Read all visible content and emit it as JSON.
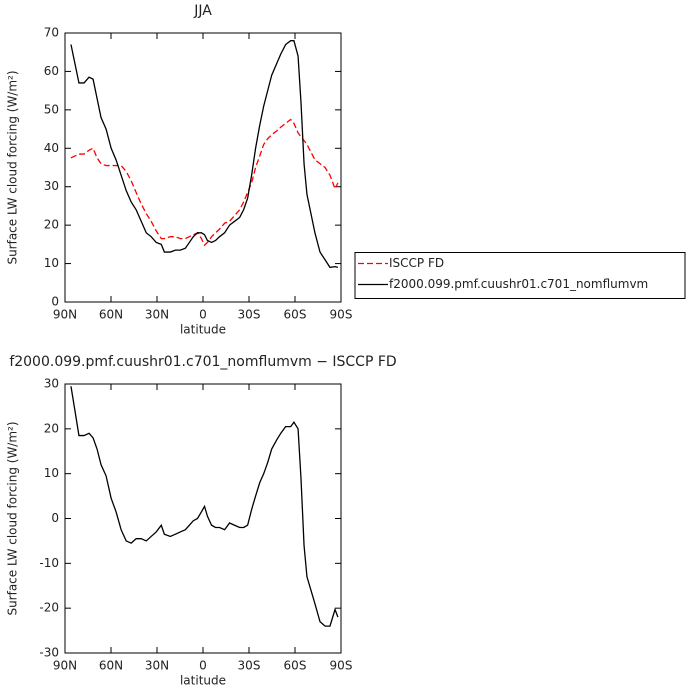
{
  "chart_data": [
    {
      "type": "line",
      "title": "JJA",
      "xlabel": "latitude",
      "ylabel": "Surface LW cloud forcing (W/m²)",
      "x": [
        86.1,
        83.5,
        80.9,
        77.6,
        74.3,
        71.7,
        69.1,
        66.5,
        63.2,
        59.9,
        56.7,
        53.4,
        50.1,
        46.8,
        43.6,
        40.3,
        37.0,
        33.8,
        30.5,
        27.2,
        25.2,
        21.3,
        18.0,
        14.8,
        11.5,
        8.9,
        6.3,
        3.6,
        1.0,
        -1.0,
        -2.9,
        -5.6,
        -8.2,
        -10.8,
        -14.1,
        -17.3,
        -20.6,
        -23.9,
        -26.5,
        -29.1,
        -31.7,
        -34.3,
        -37.0,
        -39.6,
        -42.2,
        -44.8,
        -48.0,
        -50.7,
        -53.9,
        -57.2,
        -59.3,
        -62.0,
        -63.9,
        -65.9,
        -67.8,
        -70.4,
        -73.0,
        -76.3,
        -79.6,
        -82.8,
        -86.1,
        -88.0
      ],
      "series": [
        {
          "name": "ISCCP FD",
          "color": "#ff0000",
          "linestyle": "dashed",
          "values": [
            37.5,
            38,
            38.5,
            38.5,
            39.5,
            40,
            37.5,
            36,
            35.5,
            35.5,
            35.5,
            35.5,
            34,
            31.5,
            28.5,
            25.5,
            23,
            21,
            18.5,
            16.5,
            16.5,
            17,
            17,
            16.5,
            16.5,
            17,
            17.5,
            18,
            16.5,
            14.8,
            15.5,
            17,
            18,
            19,
            20.5,
            21,
            22.5,
            24,
            26,
            28.5,
            31,
            35,
            38,
            41,
            42.5,
            43.5,
            44.5,
            45.5,
            46.5,
            47.5,
            46.5,
            44,
            43,
            42,
            41,
            39,
            37,
            36,
            35,
            33,
            29.5,
            31
          ]
        },
        {
          "name": "f2000.099.pmf.cuushr01.c701_nomflumvm",
          "color": "#000000",
          "linestyle": "solid",
          "values": [
            67,
            62,
            57,
            57,
            58.5,
            58,
            53,
            48,
            45,
            40,
            37,
            33,
            29,
            26,
            24,
            21,
            18,
            17,
            15.5,
            15,
            13,
            13,
            13.5,
            13.5,
            14,
            15.5,
            17,
            18,
            18,
            17.5,
            16,
            15.5,
            16,
            17,
            18,
            20,
            21,
            22,
            24,
            27,
            33,
            40,
            46,
            51,
            55,
            59,
            62,
            64.5,
            67,
            68,
            68,
            64,
            52,
            36,
            28,
            23,
            18,
            13,
            11,
            9,
            9.2,
            9
          ]
        }
      ],
      "xlim": [
        90,
        -90
      ],
      "xticks": [
        {
          "value": 90,
          "label": "90N"
        },
        {
          "value": 60,
          "label": "60N"
        },
        {
          "value": 30,
          "label": "30N"
        },
        0,
        {
          "value": -30,
          "label": "30S"
        },
        {
          "value": -60,
          "label": "60S"
        },
        {
          "value": -90,
          "label": "90S"
        }
      ],
      "ylim": [
        0,
        70
      ],
      "yticks": [
        0,
        10,
        20,
        30,
        40,
        50,
        60,
        70
      ],
      "legend": "right"
    },
    {
      "type": "line",
      "title": "f2000.099.pmf.cuushr01.c701_nomflumvm − ISCCP FD",
      "xlabel": "latitude",
      "ylabel": "Surface LW cloud forcing (W/m²)",
      "x": [
        86.1,
        83.5,
        80.9,
        77.6,
        74.3,
        71.7,
        69.1,
        66.5,
        63.2,
        59.9,
        56.7,
        53.4,
        50.1,
        46.8,
        43.6,
        40.3,
        37.0,
        33.8,
        30.5,
        27.2,
        25.2,
        21.3,
        18.0,
        14.8,
        11.5,
        8.9,
        6.3,
        3.6,
        1.0,
        -1.0,
        -2.9,
        -5.6,
        -8.2,
        -10.8,
        -14.1,
        -17.3,
        -20.6,
        -23.9,
        -26.5,
        -29.1,
        -31.7,
        -34.3,
        -37.0,
        -39.6,
        -42.2,
        -44.8,
        -48.0,
        -50.7,
        -53.9,
        -57.2,
        -59.3,
        -62.0,
        -63.9,
        -65.9,
        -67.8,
        -70.4,
        -73.0,
        -76.3,
        -79.6,
        -82.8,
        -86.1,
        -88.0
      ],
      "series": [
        {
          "color": "#000000",
          "linestyle": "solid",
          "values": [
            29.5,
            24,
            18.5,
            18.5,
            19,
            18,
            15.5,
            12,
            9.5,
            4.5,
            1.5,
            -2.5,
            -5,
            -5.5,
            -4.5,
            -4.5,
            -5,
            -4,
            -3,
            -1.5,
            -3.5,
            -4,
            -3.5,
            -3,
            -2.5,
            -1.5,
            -0.5,
            0,
            1.5,
            2.7,
            0.5,
            -1.5,
            -2,
            -2,
            -2.5,
            -1,
            -1.5,
            -2,
            -2,
            -1.5,
            2,
            5,
            8,
            10,
            12.5,
            15.5,
            17.5,
            19,
            20.5,
            20.5,
            21.5,
            20,
            9,
            -6,
            -13,
            -16,
            -19,
            -23,
            -24,
            -24,
            -20.3,
            -22
          ]
        }
      ],
      "xlim": [
        90,
        -90
      ],
      "xticks": [
        {
          "value": 90,
          "label": "90N"
        },
        {
          "value": 60,
          "label": "60N"
        },
        {
          "value": 30,
          "label": "30N"
        },
        0,
        {
          "value": -30,
          "label": "30S"
        },
        {
          "value": -60,
          "label": "60S"
        },
        {
          "value": -90,
          "label": "90S"
        }
      ],
      "ylim": [
        -30,
        30
      ],
      "yticks": [
        -30,
        -20,
        -10,
        0,
        10,
        20,
        30
      ]
    }
  ]
}
